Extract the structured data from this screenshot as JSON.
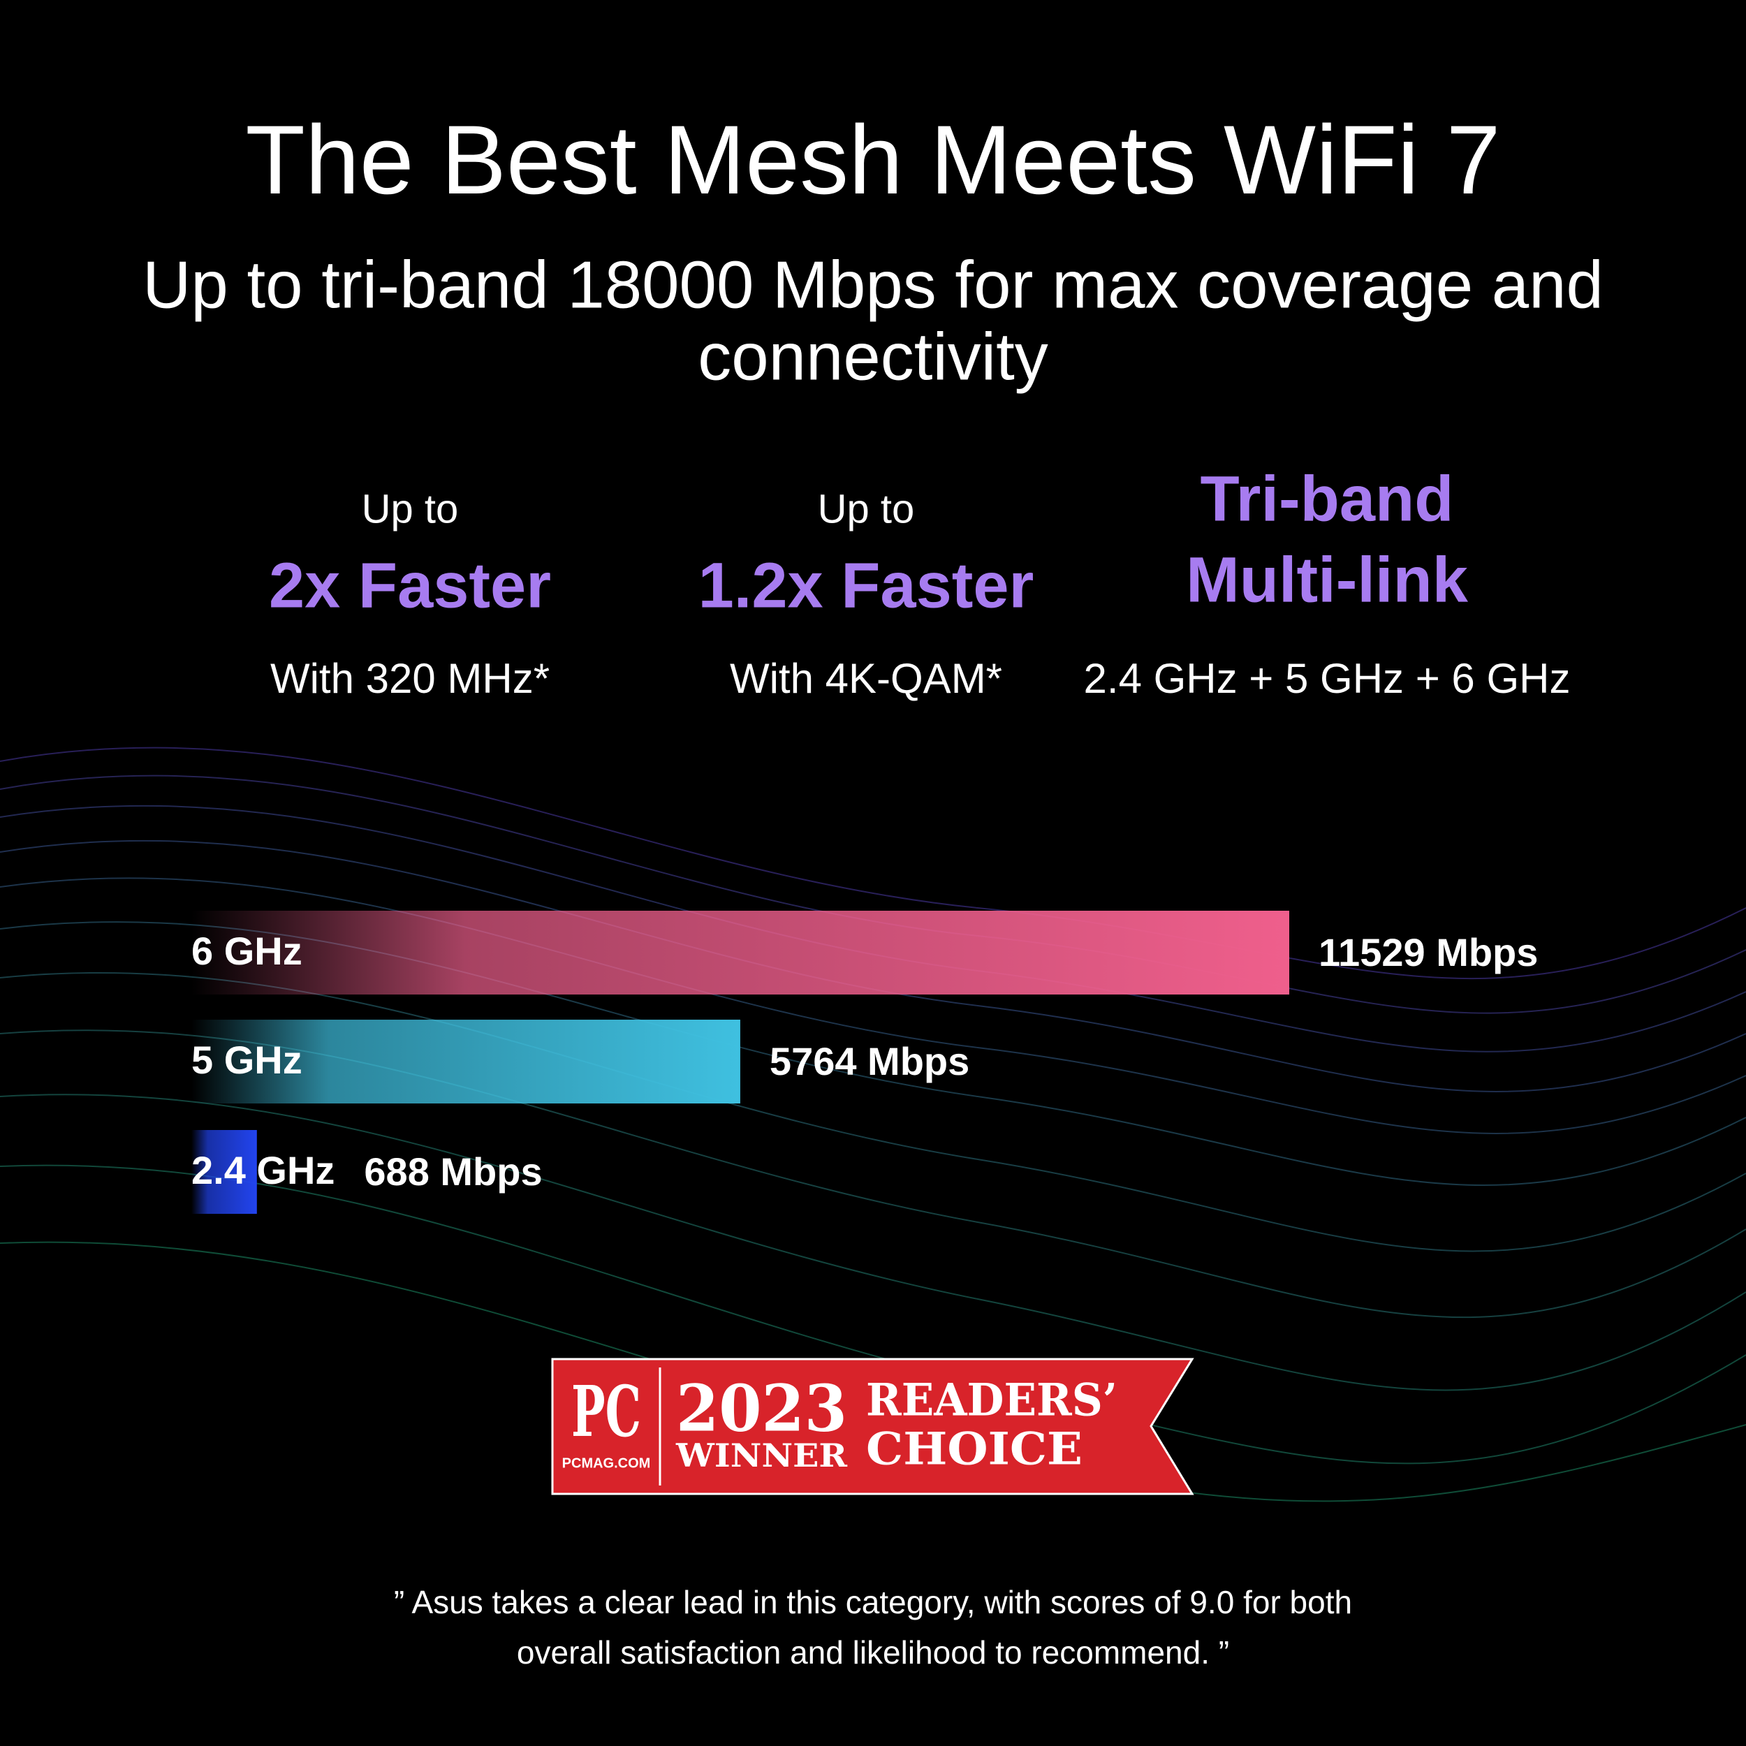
{
  "header": {
    "title": "The Best Mesh Meets WiFi 7",
    "subtitle_lines": [
      "Up to tri-band 18000 Mbps for max coverage and",
      "connectivity"
    ]
  },
  "features": [
    {
      "lead": "Up to",
      "headline_lines": [
        "2x Faster"
      ],
      "detail": "With 320 MHz*"
    },
    {
      "lead": "Up to",
      "headline_lines": [
        "1.2x Faster"
      ],
      "detail": "With 4K-QAM*"
    },
    {
      "headline_lines": [
        "Tri-band",
        "Multi-link"
      ],
      "detail": "2.4 GHz + 5 GHz + 6 GHz"
    }
  ],
  "chart_data": {
    "type": "bar",
    "orientation": "horizontal",
    "categories": [
      "6 GHz",
      "5 GHz",
      "2.4 GHz"
    ],
    "values": [
      11529,
      5764,
      688
    ],
    "value_labels": [
      "11529 Mbps",
      "5764 Mbps",
      "688 Mbps"
    ],
    "colors": [
      "#ef5f8c",
      "#3fc0e0",
      "#2244ee"
    ]
  },
  "badge": {
    "logo": "PC",
    "site": "PCMAG.COM",
    "year": "2023",
    "winner": "WINNER",
    "award_top": "READERS’",
    "award_bottom": "CHOICE"
  },
  "quote": {
    "lines": [
      "” Asus takes a clear lead in this category, with scores of 9.0 for both",
      "overall satisfaction and likelihood to recommend. ”"
    ]
  }
}
